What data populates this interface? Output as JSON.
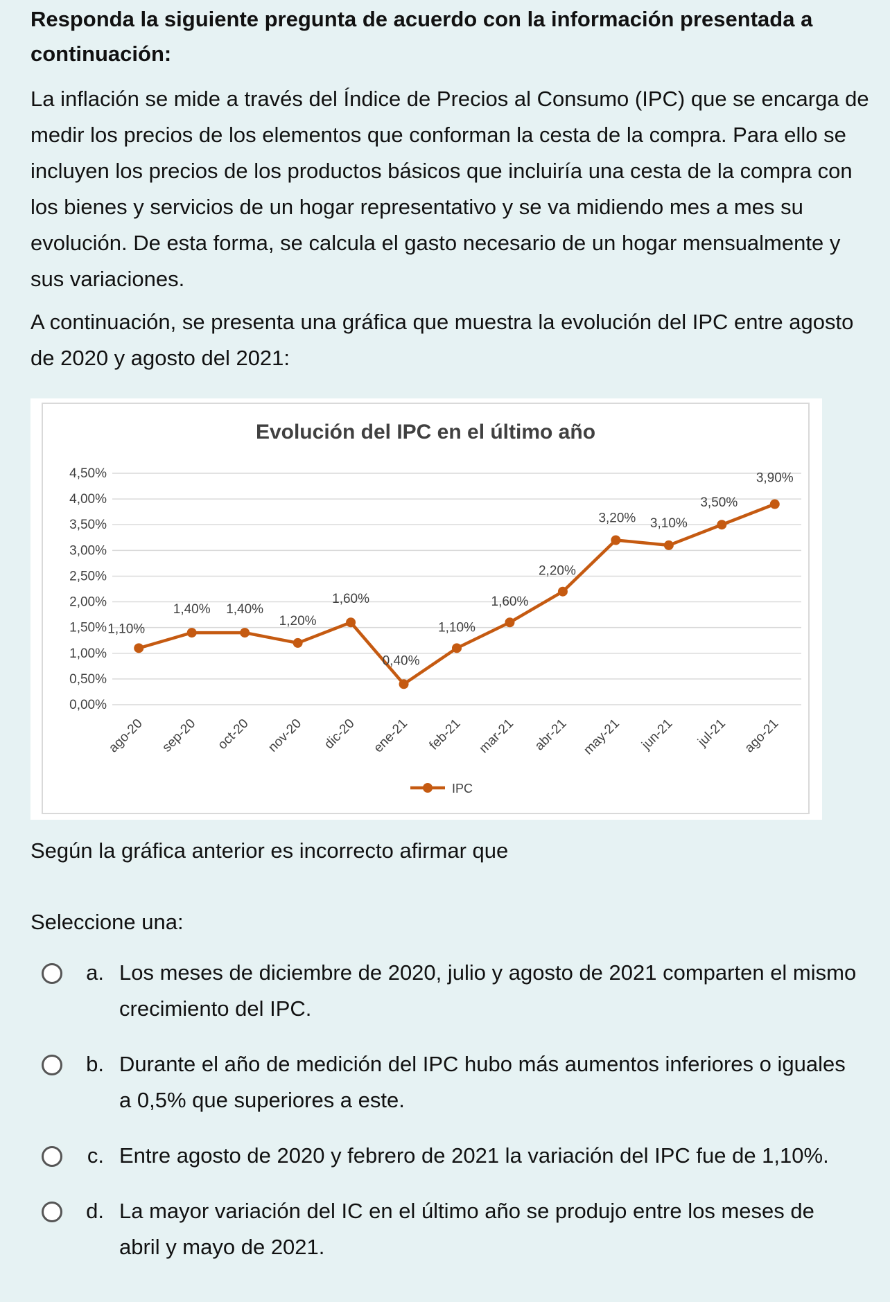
{
  "question": {
    "prompt": "Responda la siguiente pregunta de acuerdo con la información presentada a continuación:",
    "paragraph1": "La inflación se mide a través del Índice de Precios al Consumo (IPC) que se encarga de medir los precios de los elementos que conforman la cesta de la compra. Para ello se incluyen los precios de los productos básicos que incluiría una cesta de la compra con los bienes y servicios de un hogar representativo y se va midiendo mes a mes su evolución. De esta forma, se calcula el gasto necesario de un hogar mensualmente y sus variaciones.",
    "paragraph2": "A continuación, se presenta una gráfica que muestra la evolución del IPC entre agosto de 2020 y agosto del 2021:",
    "after_chart": "Según la gráfica anterior es incorrecto afirmar que",
    "select_label": "Seleccione una:"
  },
  "options": [
    {
      "letter": "a.",
      "text": "Los meses de diciembre de 2020, julio y agosto de 2021 comparten el mismo crecimiento del IPC."
    },
    {
      "letter": "b.",
      "text": "Durante el año de medición del IPC hubo más aumentos inferiores o iguales a 0,5% que superiores a este."
    },
    {
      "letter": "c.",
      "text": "Entre agosto de 2020 y febrero de 2021 la variación del IPC fue de 1,10%."
    },
    {
      "letter": "d.",
      "text": "La mayor variación del IC en el último año se produjo entre los meses de abril y mayo de 2021."
    }
  ],
  "chart_data": {
    "type": "line",
    "title": "Evolución del IPC en el último año",
    "categories": [
      "ago-20",
      "sep-20",
      "oct-20",
      "nov-20",
      "dic-20",
      "ene-21",
      "feb-21",
      "mar-21",
      "abr-21",
      "may-21",
      "jun-21",
      "jul-21",
      "ago-21"
    ],
    "series": [
      {
        "name": "IPC",
        "values": [
          1.1,
          1.4,
          1.4,
          1.2,
          1.6,
          0.4,
          1.1,
          1.6,
          2.2,
          3.2,
          3.1,
          3.5,
          3.9
        ],
        "labels": [
          "1,10%",
          "1,40%",
          "1,40%",
          "1,20%",
          "1,60%",
          "0,40%",
          "1,10%",
          "1,60%",
          "2,20%",
          "3,20%",
          "3,10%",
          "3,50%",
          "3,90%"
        ]
      }
    ],
    "yticks": [
      "0,00%",
      "0,50%",
      "1,00%",
      "1,50%",
      "2,00%",
      "2,50%",
      "3,00%",
      "3,50%",
      "4,00%",
      "4,50%"
    ],
    "ylim": [
      0,
      4.5
    ],
    "grid": true,
    "legend_position": "bottom",
    "line_color": "#c55a11"
  }
}
